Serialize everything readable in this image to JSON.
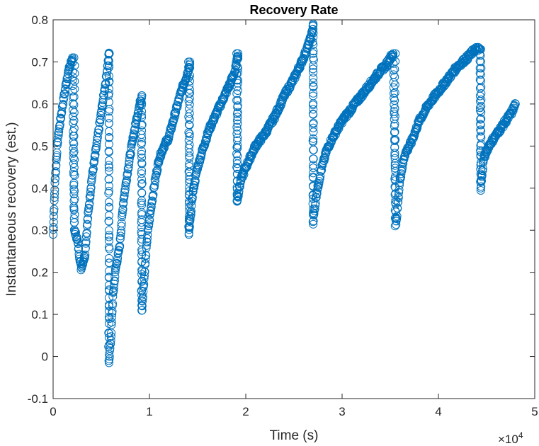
{
  "chart_data": {
    "type": "scatter",
    "title": "Recovery Rate",
    "xlabel": "Time (s)",
    "ylabel": "Instantaneous recovery (est.)",
    "x_exponent_label": "×10",
    "x_exponent_power": "4",
    "xlim": [
      0,
      5
    ],
    "ylim": [
      -0.1,
      0.8
    ],
    "x_scale_factor": 10000,
    "xticks": [
      0,
      1,
      2,
      3,
      4,
      5
    ],
    "xtick_labels": [
      "0",
      "1",
      "2",
      "3",
      "4",
      "5"
    ],
    "yticks": [
      -0.1,
      0,
      0.1,
      0.2,
      0.3,
      0.4,
      0.5,
      0.6,
      0.7,
      0.8
    ],
    "ytick_labels": [
      "-0.1",
      "0",
      "0.1",
      "0.2",
      "0.3",
      "0.4",
      "0.5",
      "0.6",
      "0.7",
      "0.8"
    ],
    "grid": false,
    "marker": "circle-open",
    "color": "#0072BD",
    "x_units_note": "x values in units of 10^4 s",
    "segments": [
      {
        "x": [
          0.0,
          0.02,
          0.05,
          0.1,
          0.15,
          0.2
        ],
        "y": [
          0.29,
          0.42,
          0.52,
          0.6,
          0.67,
          0.71
        ]
      },
      {
        "x": [
          0.2,
          0.22,
          0.25,
          0.29,
          0.33,
          0.36,
          0.4,
          0.45,
          0.5,
          0.55,
          0.57,
          0.58
        ],
        "y": [
          0.71,
          0.3,
          0.28,
          0.21,
          0.24,
          0.33,
          0.42,
          0.5,
          0.58,
          0.66,
          0.7,
          0.72
        ]
      },
      {
        "x": [
          0.58,
          0.58,
          0.6,
          0.62,
          0.65,
          0.69,
          0.73,
          0.78,
          0.83,
          0.88,
          0.92
        ],
        "y": [
          0.72,
          -0.01,
          0.04,
          0.14,
          0.21,
          0.26,
          0.37,
          0.45,
          0.52,
          0.58,
          0.62
        ]
      },
      {
        "x": [
          0.92,
          0.92,
          0.95,
          0.98,
          1.02,
          1.06,
          1.1,
          1.15,
          1.2,
          1.27,
          1.33,
          1.39,
          1.42
        ],
        "y": [
          0.62,
          0.11,
          0.2,
          0.29,
          0.36,
          0.42,
          0.47,
          0.5,
          0.52,
          0.58,
          0.63,
          0.67,
          0.7
        ]
      },
      {
        "x": [
          1.42,
          1.41,
          1.45,
          1.5,
          1.55,
          1.62,
          1.7,
          1.78,
          1.84,
          1.89,
          1.92
        ],
        "y": [
          0.7,
          0.29,
          0.39,
          0.45,
          0.49,
          0.54,
          0.58,
          0.62,
          0.65,
          0.68,
          0.72
        ]
      },
      {
        "x": [
          1.92,
          1.91,
          1.95,
          2.02,
          2.1,
          2.2,
          2.3,
          2.4,
          2.5,
          2.6,
          2.68,
          2.7
        ],
        "y": [
          0.72,
          0.37,
          0.42,
          0.46,
          0.5,
          0.53,
          0.57,
          0.62,
          0.66,
          0.71,
          0.76,
          0.79
        ]
      },
      {
        "x": [
          2.7,
          2.7,
          2.73,
          2.78,
          2.84,
          2.9,
          3.0,
          3.1,
          3.2,
          3.3,
          3.4,
          3.45,
          3.5,
          3.53
        ],
        "y": [
          0.79,
          0.32,
          0.38,
          0.44,
          0.49,
          0.52,
          0.56,
          0.59,
          0.62,
          0.65,
          0.68,
          0.69,
          0.71,
          0.72
        ]
      },
      {
        "x": [
          3.53,
          3.56,
          3.6,
          3.65,
          3.72,
          3.8,
          3.9,
          4.0,
          4.1,
          4.2,
          4.3,
          4.38,
          4.43
        ],
        "y": [
          0.72,
          0.31,
          0.42,
          0.48,
          0.51,
          0.56,
          0.6,
          0.63,
          0.66,
          0.69,
          0.71,
          0.73,
          0.73
        ]
      },
      {
        "x": [
          4.43,
          4.44,
          4.47,
          4.52,
          4.58,
          4.64,
          4.7,
          4.76,
          4.8
        ],
        "y": [
          0.73,
          0.4,
          0.47,
          0.5,
          0.52,
          0.54,
          0.56,
          0.58,
          0.6
        ]
      }
    ],
    "dips": [
      {
        "x": 0.22,
        "ymax": 0.71,
        "ymin": 0.3
      },
      {
        "x": 0.58,
        "ymax": 0.72,
        "ymin": -0.01
      },
      {
        "x": 0.92,
        "ymax": 0.62,
        "ymin": 0.11
      },
      {
        "x": 1.41,
        "ymax": 0.7,
        "ymin": 0.29
      },
      {
        "x": 1.91,
        "ymax": 0.72,
        "ymin": 0.37
      },
      {
        "x": 2.7,
        "ymax": 0.79,
        "ymin": 0.32
      },
      {
        "x": 3.55,
        "ymax": 0.72,
        "ymin": 0.31
      },
      {
        "x": 4.44,
        "ymax": 0.73,
        "ymin": 0.4
      }
    ]
  }
}
